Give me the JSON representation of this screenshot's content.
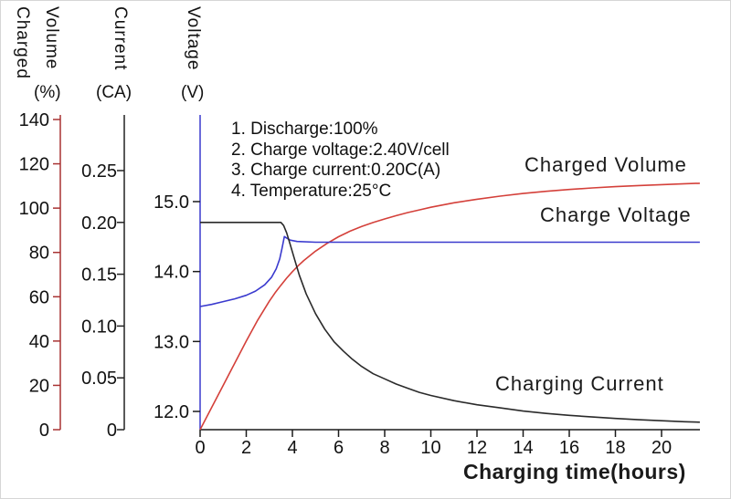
{
  "chart_data": {
    "type": "line",
    "x_axis": {
      "label": "Charging time(hours)",
      "tick_values": [
        0,
        2,
        4,
        6,
        8,
        10,
        12,
        14,
        16,
        18,
        20
      ],
      "tick_labels": [
        "0",
        "2",
        "4",
        "6",
        "8",
        "10",
        "12",
        "14",
        "16",
        "18",
        "20"
      ],
      "min": 0,
      "max": 21.66
    },
    "y_axes": [
      {
        "id": "charged_volume",
        "label": "Charged Volume",
        "label_words": [
          "Charged",
          "Volume"
        ],
        "unit": "(%)",
        "color": "#a83232",
        "tick_values": [
          0,
          20,
          40,
          60,
          80,
          100,
          120,
          140
        ],
        "tick_labels": [
          "0",
          "20",
          "40",
          "60",
          "80",
          "100",
          "120",
          "140"
        ],
        "min": 0,
        "max": 140
      },
      {
        "id": "current",
        "label": "Current",
        "unit": "(CA)",
        "color": "#222222",
        "tick_values": [
          0,
          0.05,
          0.1,
          0.15,
          0.2,
          0.25
        ],
        "tick_labels": [
          "0",
          "0.05",
          "0.10",
          "0.15",
          "0.20",
          "0.25"
        ],
        "min": 0,
        "max": 0.25
      },
      {
        "id": "voltage",
        "label": "Voltage",
        "unit": "(V)",
        "color": "#3a3ace",
        "tick_values": [
          12,
          13,
          14,
          15
        ],
        "tick_labels": [
          "12.0",
          "13.0",
          "14.0",
          "15.0"
        ],
        "min": 12,
        "max": 15
      }
    ],
    "annotations": [
      "1. Discharge:100%",
      "2. Charge voltage:2.40V/cell",
      "3. Charge current:0.20C(A)",
      "4. Temperature:25°C"
    ],
    "series": [
      {
        "name": "Charged Volume",
        "axis": "charged_volume",
        "color": "#d4403a",
        "points": [
          [
            0,
            0
          ],
          [
            0.5,
            10
          ],
          [
            1,
            20
          ],
          [
            1.5,
            30
          ],
          [
            2,
            40
          ],
          [
            2.5,
            49.5
          ],
          [
            3,
            58
          ],
          [
            3.25,
            61.8
          ],
          [
            3.5,
            65.2
          ],
          [
            3.75,
            68.4
          ],
          [
            4,
            71.3
          ],
          [
            4.25,
            74
          ],
          [
            4.5,
            76.4
          ],
          [
            5,
            80.6
          ],
          [
            5.5,
            84.1
          ],
          [
            6,
            87.1
          ],
          [
            6.5,
            89.6
          ],
          [
            7,
            91.7
          ],
          [
            7.5,
            93.5
          ],
          [
            8,
            95.1
          ],
          [
            8.5,
            96.6
          ],
          [
            9,
            98
          ],
          [
            9.5,
            99.2
          ],
          [
            10,
            100.4
          ],
          [
            11,
            102.4
          ],
          [
            12,
            104
          ],
          [
            13,
            105.4
          ],
          [
            14,
            106.6
          ],
          [
            15,
            107.6
          ],
          [
            16,
            108.4
          ],
          [
            17,
            109.1
          ],
          [
            18,
            109.7
          ],
          [
            19,
            110.2
          ],
          [
            20,
            110.6
          ],
          [
            21,
            111
          ],
          [
            21.66,
            111.2
          ]
        ]
      },
      {
        "name": "Charge Voltage",
        "axis": "voltage",
        "color": "#3a3ace",
        "points": [
          [
            0,
            13.5
          ],
          [
            0.5,
            13.53
          ],
          [
            1,
            13.57
          ],
          [
            1.5,
            13.61
          ],
          [
            2,
            13.66
          ],
          [
            2.4,
            13.72
          ],
          [
            2.8,
            13.81
          ],
          [
            3.1,
            13.92
          ],
          [
            3.3,
            14.04
          ],
          [
            3.45,
            14.18
          ],
          [
            3.55,
            14.33
          ],
          [
            3.65,
            14.5
          ],
          [
            3.75,
            14.48
          ],
          [
            3.9,
            14.45
          ],
          [
            4.2,
            14.43
          ],
          [
            5,
            14.42
          ],
          [
            8,
            14.42
          ],
          [
            12,
            14.42
          ],
          [
            16,
            14.42
          ],
          [
            21.66,
            14.42
          ]
        ]
      },
      {
        "name": "Charging Current",
        "axis": "current",
        "color": "#2a2a2a",
        "points": [
          [
            0,
            0.2
          ],
          [
            3.5,
            0.2
          ],
          [
            3.62,
            0.197
          ],
          [
            3.75,
            0.19
          ],
          [
            3.9,
            0.179
          ],
          [
            4.1,
            0.164
          ],
          [
            4.3,
            0.149
          ],
          [
            4.6,
            0.131
          ],
          [
            5,
            0.112
          ],
          [
            5.4,
            0.097
          ],
          [
            5.8,
            0.085
          ],
          [
            6.2,
            0.076
          ],
          [
            6.6,
            0.068
          ],
          [
            7,
            0.061
          ],
          [
            7.5,
            0.054
          ],
          [
            8,
            0.049
          ],
          [
            8.5,
            0.044
          ],
          [
            9,
            0.04
          ],
          [
            9.5,
            0.036
          ],
          [
            10,
            0.033
          ],
          [
            11,
            0.028
          ],
          [
            12,
            0.024
          ],
          [
            13,
            0.021
          ],
          [
            14,
            0.018
          ],
          [
            15,
            0.0157
          ],
          [
            16,
            0.0138
          ],
          [
            17,
            0.0122
          ],
          [
            18,
            0.0108
          ],
          [
            19,
            0.0096
          ],
          [
            20,
            0.0086
          ],
          [
            21,
            0.0077
          ],
          [
            21.66,
            0.0072
          ]
        ]
      }
    ]
  }
}
